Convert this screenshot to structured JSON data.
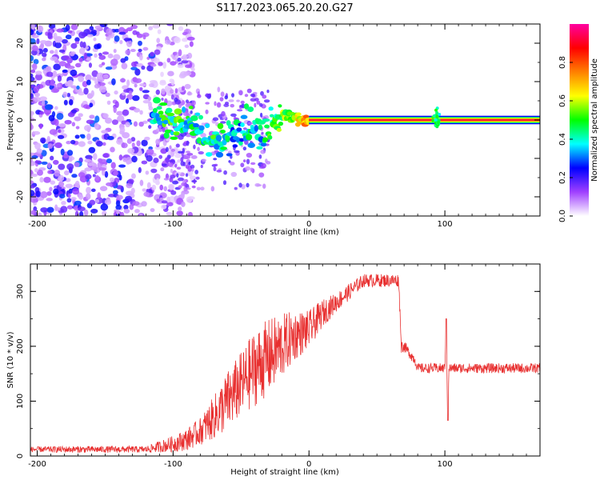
{
  "title": "S117.2023.065.20.20.G27",
  "chart_data": [
    {
      "type": "heatmap",
      "xlabel": "Height of straight line (km)",
      "ylabel": "Frequency (Hz)",
      "xlim": [
        -205,
        170
      ],
      "ylim": [
        -25,
        25
      ],
      "xticks": [
        -200,
        -100,
        0,
        100
      ],
      "yticks": [
        -20,
        -10,
        0,
        10,
        20
      ],
      "colorbar": {
        "label": "Normalized spectral amplitude",
        "range": [
          0,
          1
        ],
        "ticks": [
          "0.0",
          "0.2",
          "0.4",
          "0.6",
          "0.8"
        ],
        "colors": [
          "#ffffff",
          "#a040ff",
          "#0000ff",
          "#00ffff",
          "#00ff00",
          "#ffff00",
          "#ff8000",
          "#ff0000",
          "#ff00a0"
        ]
      },
      "noise_region": {
        "x": [
          -205,
          -105
        ],
        "y": [
          -25,
          25
        ],
        "amplitude": [
          0.05,
          0.3
        ]
      },
      "signal_track": [
        {
          "x": -115,
          "y": 1.0,
          "amp": 0.3
        },
        {
          "x": -105,
          "y": 0.5,
          "amp": 0.4
        },
        {
          "x": -95,
          "y": 0.0,
          "amp": 0.4
        },
        {
          "x": -85,
          "y": -2.0,
          "amp": 0.35
        },
        {
          "x": -75,
          "y": -5.0,
          "amp": 0.4
        },
        {
          "x": -65,
          "y": -6.0,
          "amp": 0.35
        },
        {
          "x": -55,
          "y": -3.0,
          "amp": 0.3
        },
        {
          "x": -45,
          "y": -1.0,
          "amp": 0.35
        },
        {
          "x": -35,
          "y": -4.0,
          "amp": 0.3
        },
        {
          "x": -25,
          "y": 0.5,
          "amp": 0.45
        },
        {
          "x": -15,
          "y": 1.0,
          "amp": 0.5
        },
        {
          "x": -5,
          "y": 0.0,
          "amp": 0.6
        },
        {
          "x": 20,
          "y": 0.0,
          "amp": 0.9
        },
        {
          "x": 100,
          "y": 0.0,
          "amp": 0.9
        },
        {
          "x": 170,
          "y": 0.0,
          "amp": 0.9
        }
      ]
    },
    {
      "type": "line",
      "xlabel": "Height of straight line (km)",
      "ylabel": "SNR (10 * v/v)",
      "xlim": [
        -205,
        170
      ],
      "ylim": [
        0,
        350
      ],
      "xticks": [
        -200,
        -100,
        0,
        100
      ],
      "yticks": [
        0,
        100,
        200,
        300
      ],
      "color": "#e83030",
      "series": [
        {
          "x": [
            -205,
            -180,
            -150,
            -120,
            -100,
            -90,
            -80,
            -70,
            -60,
            -50,
            -40,
            -30,
            -20,
            -10,
            0,
            10,
            20,
            30,
            40,
            50,
            60,
            66,
            68,
            70,
            78,
            80,
            90,
            100,
            101,
            102,
            103,
            110,
            130,
            150,
            170
          ],
          "y": [
            12,
            12,
            12,
            12,
            22,
            30,
            45,
            70,
            100,
            130,
            160,
            180,
            200,
            220,
            230,
            260,
            280,
            300,
            320,
            320,
            320,
            320,
            200,
            200,
            175,
            160,
            160,
            160,
            250,
            65,
            160,
            160,
            160,
            160,
            160
          ],
          "noise": [
            5,
            6,
            6,
            6,
            15,
            20,
            25,
            40,
            55,
            60,
            70,
            70,
            60,
            45,
            35,
            25,
            18,
            15,
            12,
            12,
            12,
            12,
            12,
            10,
            10,
            9,
            9,
            9,
            0,
            0,
            9,
            9,
            9,
            9,
            9
          ]
        }
      ]
    }
  ]
}
